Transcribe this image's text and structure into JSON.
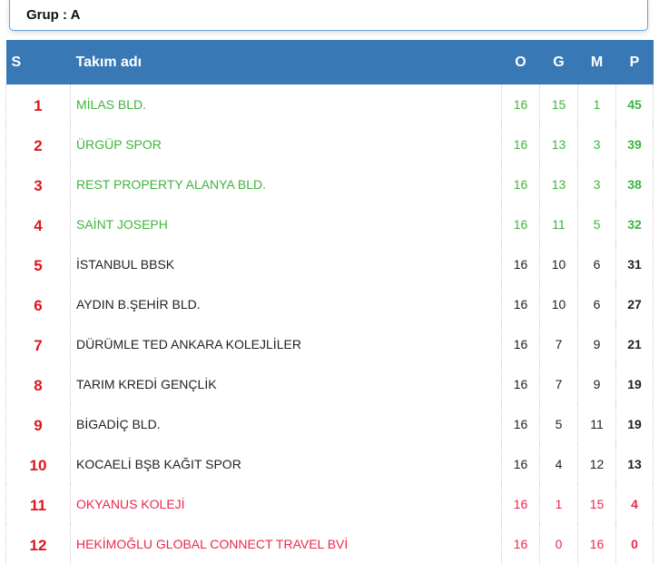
{
  "group_label": "Grup : A",
  "headers": {
    "s": "S",
    "name": "Takım adı",
    "o": "O",
    "g": "G",
    "m": "M",
    "p": "P"
  },
  "colors": {
    "header": "#3778b5",
    "promoted": "#3cb43c",
    "relegated": "#e8284a",
    "rank": "#e0141e"
  },
  "rows": [
    {
      "s": "1",
      "name": "MİLAS BLD.",
      "o": "16",
      "g": "15",
      "m": "1",
      "p": "45",
      "status": "green"
    },
    {
      "s": "2",
      "name": "ÜRGÜP SPOR",
      "o": "16",
      "g": "13",
      "m": "3",
      "p": "39",
      "status": "green"
    },
    {
      "s": "3",
      "name": "REST PROPERTY ALANYA BLD.",
      "o": "16",
      "g": "13",
      "m": "3",
      "p": "38",
      "status": "green"
    },
    {
      "s": "4",
      "name": "SAİNT JOSEPH",
      "o": "16",
      "g": "11",
      "m": "5",
      "p": "32",
      "status": "green"
    },
    {
      "s": "5",
      "name": "İSTANBUL BBSK",
      "o": "16",
      "g": "10",
      "m": "6",
      "p": "31",
      "status": "norm"
    },
    {
      "s": "6",
      "name": "AYDIN B.ŞEHİR BLD.",
      "o": "16",
      "g": "10",
      "m": "6",
      "p": "27",
      "status": "norm"
    },
    {
      "s": "7",
      "name": "DÜRÜMLE TED ANKARA KOLEJLİLER",
      "o": "16",
      "g": "7",
      "m": "9",
      "p": "21",
      "status": "norm"
    },
    {
      "s": "8",
      "name": "TARIM KREDİ GENÇLİK",
      "o": "16",
      "g": "7",
      "m": "9",
      "p": "19",
      "status": "norm"
    },
    {
      "s": "9",
      "name": "BİGADİÇ BLD.",
      "o": "16",
      "g": "5",
      "m": "11",
      "p": "19",
      "status": "norm"
    },
    {
      "s": "10",
      "name": "KOCAELİ BŞB KAĞIT SPOR",
      "o": "16",
      "g": "4",
      "m": "12",
      "p": "13",
      "status": "norm"
    },
    {
      "s": "11",
      "name": "OKYANUS KOLEJİ",
      "o": "16",
      "g": "1",
      "m": "15",
      "p": "4",
      "status": "red"
    },
    {
      "s": "12",
      "name": "HEKİMOĞLU GLOBAL CONNECT TRAVEL BVİ",
      "o": "16",
      "g": "0",
      "m": "16",
      "p": "0",
      "status": "red"
    }
  ]
}
